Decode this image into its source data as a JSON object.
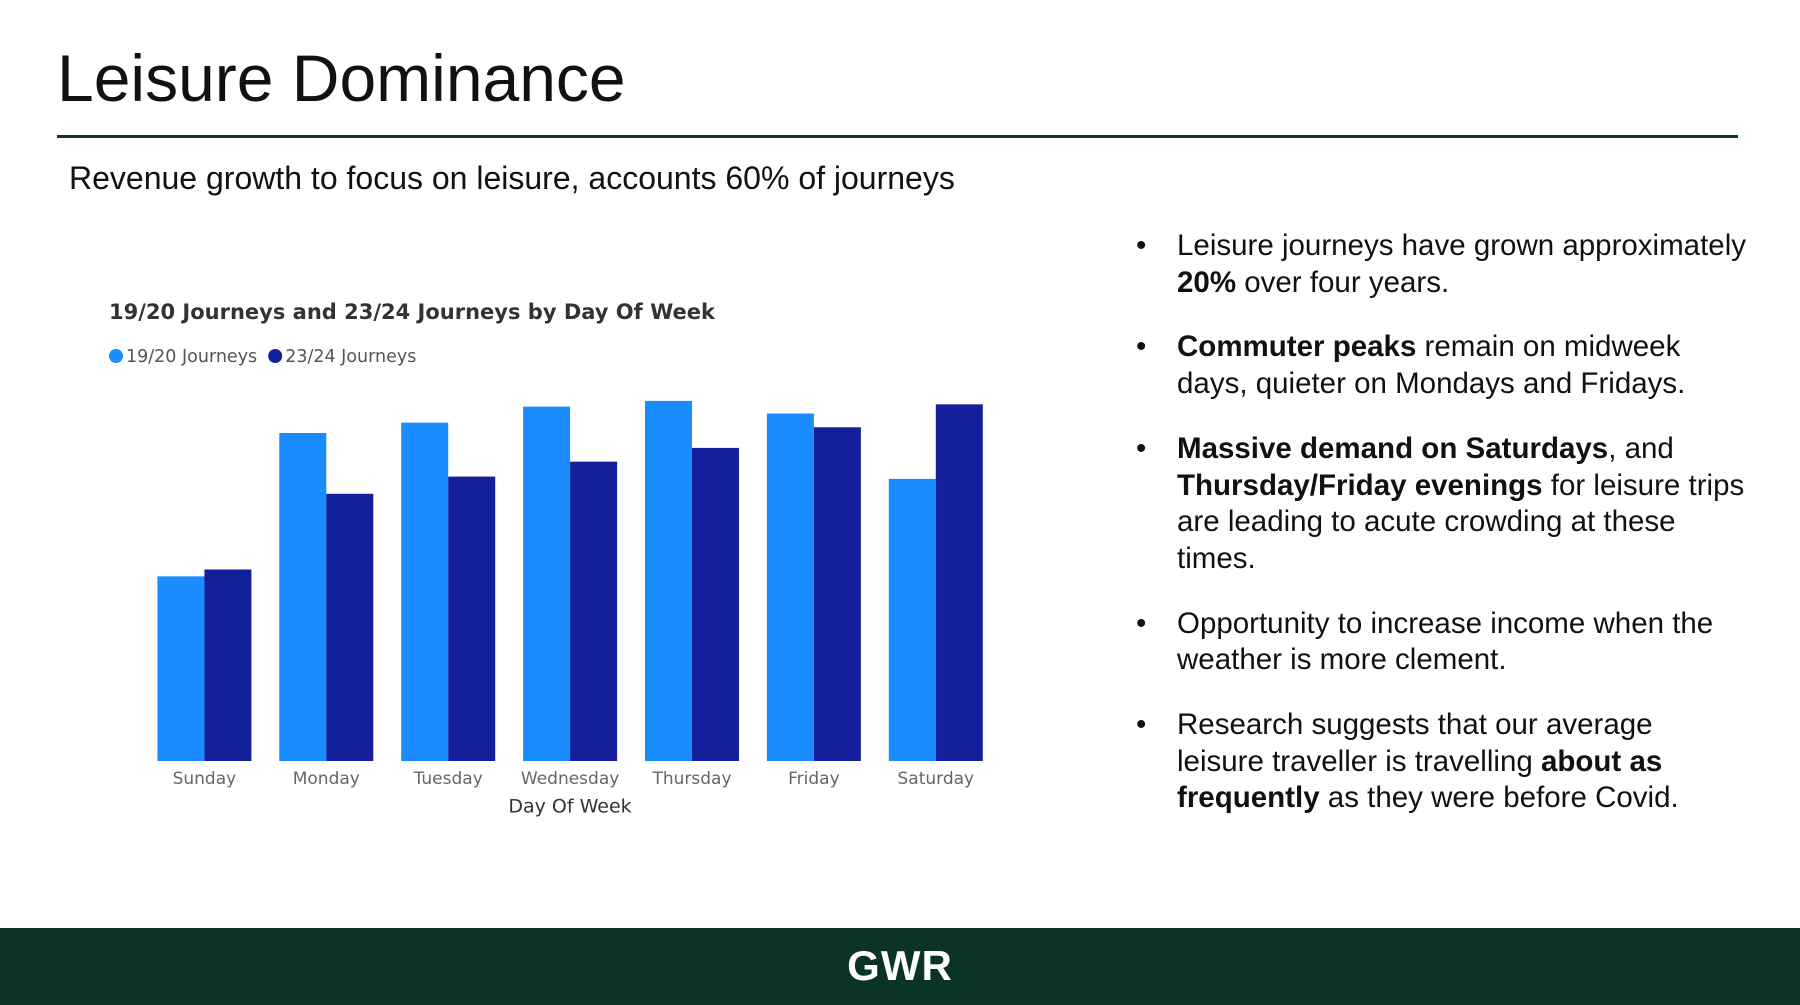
{
  "title": "Leisure Dominance",
  "subtitle": "Revenue growth to focus on leisure, accounts 60% of journeys",
  "chart_data": {
    "type": "bar",
    "title": "19/20 Journeys and 23/24 Journeys by Day Of Week",
    "x_label": "Day Of Week",
    "categories": [
      "Sunday",
      "Monday",
      "Tuesday",
      "Wednesday",
      "Thursday",
      "Friday",
      "Saturday"
    ],
    "series": [
      {
        "name": "19/20 Journeys",
        "color": "#1a8cff",
        "values": [
          161,
          286,
          295,
          309,
          314,
          303,
          246
        ]
      },
      {
        "name": "23/24 Journeys",
        "color": "#14209b",
        "values": [
          167,
          233,
          248,
          261,
          273,
          291,
          311
        ]
      }
    ],
    "ylim": [
      0,
      320
    ],
    "legend": "top-left"
  },
  "bullets": [
    {
      "runs": [
        {
          "text": "Leisure journeys have grown approximately ",
          "bold": false
        },
        {
          "text": "20%",
          "bold": true
        },
        {
          "text": " over four years.",
          "bold": false
        }
      ]
    },
    {
      "runs": [
        {
          "text": "Commuter peaks",
          "bold": true
        },
        {
          "text": " remain on midweek days, quieter on Mondays and Fridays.",
          "bold": false
        }
      ]
    },
    {
      "runs": [
        {
          "text": "Massive demand on Saturdays",
          "bold": true
        },
        {
          "text": ", and ",
          "bold": false
        },
        {
          "text": "Thursday/Friday evenings",
          "bold": true
        },
        {
          "text": " for leisure trips are leading to acute crowding at these times.",
          "bold": false
        }
      ]
    },
    {
      "runs": [
        {
          "text": "Opportunity to increase income when the weather is more clement.",
          "bold": false
        }
      ]
    },
    {
      "runs": [
        {
          "text": "Research suggests that our average leisure traveller is travelling ",
          "bold": false
        },
        {
          "text": "about as frequently",
          "bold": true
        },
        {
          "text": " as they were before Covid.",
          "bold": false
        }
      ]
    }
  ],
  "footer": {
    "logo": "GWR"
  }
}
